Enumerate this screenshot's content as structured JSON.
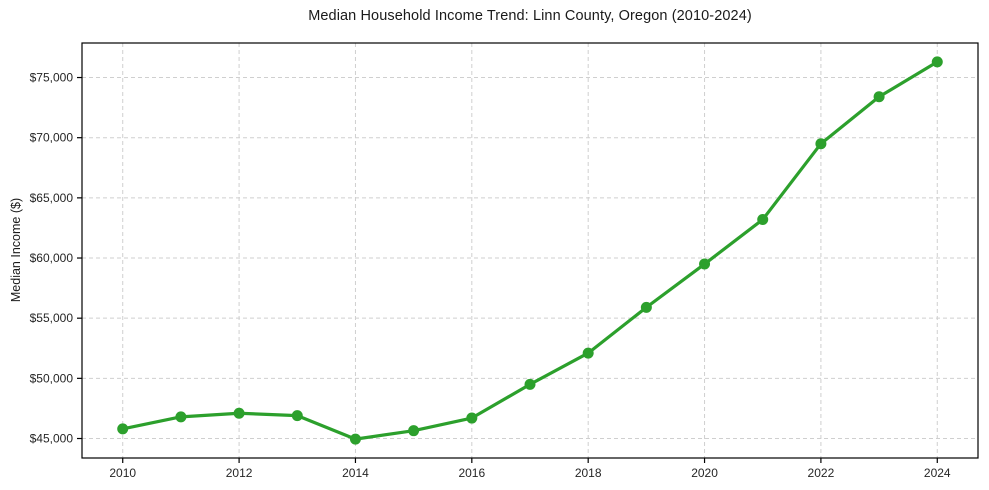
{
  "chart_data": {
    "type": "line",
    "title": "Median Household Income Trend: Linn County, Oregon (2010-2024)",
    "xlabel": "",
    "ylabel": "Median Income ($)",
    "x": [
      2010,
      2011,
      2012,
      2013,
      2014,
      2015,
      2016,
      2017,
      2018,
      2019,
      2020,
      2021,
      2022,
      2023,
      2024
    ],
    "series": [
      {
        "name": "Median Household Income",
        "values": [
          45800,
          46800,
          47100,
          46900,
          44950,
          45650,
          46700,
          49500,
          52100,
          55900,
          59500,
          63200,
          69500,
          73400,
          76300
        ],
        "color": "#2ca02c"
      }
    ],
    "xlim": [
      2009.3,
      2024.7
    ],
    "ylim": [
      43380,
      77870
    ],
    "x_ticks": [
      2010,
      2012,
      2014,
      2016,
      2018,
      2020,
      2022,
      2024
    ],
    "x_tick_labels": [
      "2010",
      "2012",
      "2014",
      "2016",
      "2018",
      "2020",
      "2022",
      "2024"
    ],
    "y_ticks": [
      45000,
      50000,
      55000,
      60000,
      65000,
      70000,
      75000
    ],
    "y_tick_labels": [
      "$45,000",
      "$50,000",
      "$55,000",
      "$60,000",
      "$65,000",
      "$70,000",
      "$75,000"
    ],
    "grid": true,
    "grid_style": "dashed",
    "grid_color": "#cfcfcf",
    "spine_color": "#000000",
    "legend": "none",
    "marker": "circle",
    "line_color": "#2ca02c"
  }
}
